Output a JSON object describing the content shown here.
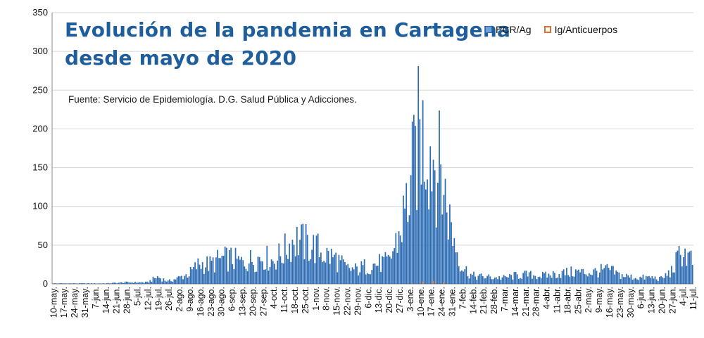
{
  "chart_data": {
    "type": "bar",
    "title_lines": [
      "Evolución de la pandemia en Cartagena",
      "desde mayo de 2020"
    ],
    "source": "Fuente: Servicio de Epidemiología. D.G. Salud Pública y Adicciones.",
    "ylim": [
      0,
      350
    ],
    "y_ticks": [
      0,
      50,
      100,
      150,
      200,
      250,
      300,
      350
    ],
    "x_start_date": "2020-05-10",
    "x_end_date": "2021-07-11",
    "x_tick_labels": [
      "10-may.",
      "17-may.",
      "24-may.",
      "31-may.",
      "7-jun.",
      "14-jun.",
      "21-jun.",
      "28-jun.",
      "5-jul.",
      "12-jul.",
      "19-jul.",
      "26-jul.",
      "2-ago.",
      "9-ago.",
      "16-ago.",
      "23-ago.",
      "30-ago.",
      "6-sep.",
      "13-sep.",
      "20-sep.",
      "27-sep.",
      "4-oct.",
      "11-oct.",
      "18-oct.",
      "25-oct.",
      "1-nov.",
      "8-nov.",
      "15-nov.",
      "22-nov.",
      "29-nov.",
      "6-dic.",
      "13-dic.",
      "20-dic.",
      "27-dic.",
      "3-ene.",
      "10-ene.",
      "17-ene.",
      "24-ene.",
      "31-ene.",
      "7-feb.",
      "14-feb.",
      "21-feb.",
      "28-feb.",
      "7-mar.",
      "14-mar.",
      "21-mar.",
      "28-mar.",
      "4-abr.",
      "11-abr.",
      "18-abr.",
      "25-abr.",
      "2-may.",
      "9-may.",
      "16-may.",
      "23-may.",
      "30-may.",
      "6-jun.",
      "13-jun.",
      "20-jun.",
      "27-jun.",
      "4-jul.",
      "11-jul."
    ],
    "weekly_peak_pcr": [
      1,
      1,
      1,
      1,
      1,
      1,
      2,
      3,
      3,
      3,
      14,
      5,
      12,
      20,
      40,
      38,
      49,
      50,
      42,
      48,
      54,
      46,
      62,
      90,
      80,
      72,
      58,
      50,
      30,
      28,
      36,
      40,
      42,
      95,
      180,
      303,
      270,
      220,
      110,
      35,
      16,
      14,
      13,
      12,
      16,
      18,
      17,
      16,
      20,
      22,
      24,
      22,
      25,
      28,
      18,
      14,
      12,
      13,
      10,
      25,
      65,
      45
    ],
    "weekly_peak_ig": [
      0,
      0,
      0,
      0,
      0,
      0,
      0,
      0,
      0,
      0,
      0,
      0,
      0,
      0,
      0,
      0,
      0,
      0,
      0,
      0,
      0,
      0,
      0,
      0,
      0,
      0,
      0,
      0,
      0,
      0,
      0,
      0,
      0,
      0,
      1,
      3,
      4,
      2,
      0,
      0,
      0,
      0,
      0,
      0,
      0,
      0,
      0,
      0,
      0,
      0,
      0,
      0,
      0,
      0,
      0,
      0,
      0,
      0,
      0,
      0,
      0,
      0
    ],
    "series": [
      {
        "name": "PCR/Ag",
        "color": "#2e6db4"
      },
      {
        "name": "Ig/Anticuerpos",
        "color": "#e0712c"
      }
    ],
    "legend_position": "top-right",
    "grid": true
  }
}
